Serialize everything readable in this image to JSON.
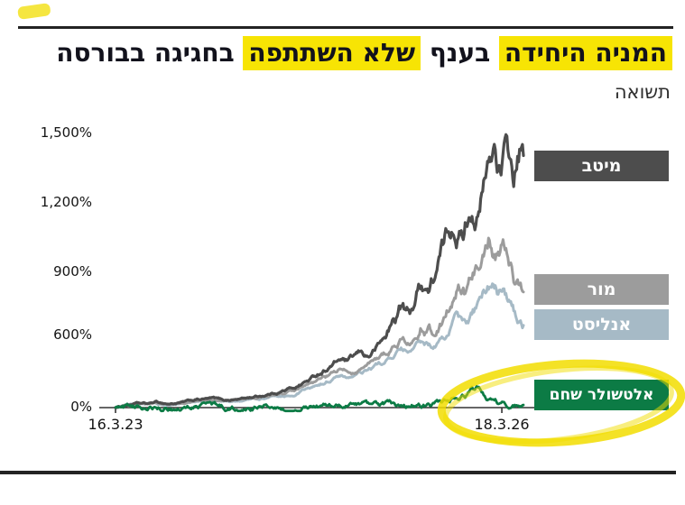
{
  "page": {
    "title_segments": [
      {
        "text": "המניה היחידה",
        "highlight": true
      },
      {
        "text": "בענף",
        "highlight": false
      },
      {
        "text": "שלא השתתפה",
        "highlight": true
      },
      {
        "text": "בחגיגה בבורסה",
        "highlight": false
      }
    ],
    "subtitle": "תשואה"
  },
  "chart_data": {
    "type": "line",
    "title": "המניה היחידה בענף שלא השתתפה בחגיגה בבורסה",
    "ylabel": "תשואה",
    "legend_position": "right",
    "grid": false,
    "y_axis_note": "nonlinear scale, compressed below 600%",
    "y_ticks": [
      {
        "label": "0%",
        "value": 0
      },
      {
        "label": "600%",
        "value": 600
      },
      {
        "label": "900%",
        "value": 900
      },
      {
        "label": "1,200%",
        "value": 1200
      },
      {
        "label": "1,500%",
        "value": 1500
      }
    ],
    "x_ticks": [
      {
        "label": "16.3.23",
        "t": 0
      },
      {
        "label": "18.3.26",
        "t": 0.947
      }
    ],
    "series": [
      {
        "id": "meitav",
        "name": "מיטב",
        "color": "#4d4d4d",
        "width": 3.2,
        "noise_abs": 6,
        "noise_rel": 0.045,
        "anchors": [
          [
            0,
            0
          ],
          [
            0.02,
            15
          ],
          [
            0.05,
            35
          ],
          [
            0.08,
            30
          ],
          [
            0.1,
            45
          ],
          [
            0.13,
            30
          ],
          [
            0.16,
            40
          ],
          [
            0.2,
            65
          ],
          [
            0.24,
            75
          ],
          [
            0.27,
            60
          ],
          [
            0.3,
            70
          ],
          [
            0.33,
            85
          ],
          [
            0.36,
            100
          ],
          [
            0.4,
            130
          ],
          [
            0.44,
            170
          ],
          [
            0.48,
            240
          ],
          [
            0.52,
            330
          ],
          [
            0.55,
            400
          ],
          [
            0.57,
            380
          ],
          [
            0.6,
            450
          ],
          [
            0.62,
            420
          ],
          [
            0.64,
            500
          ],
          [
            0.67,
            620
          ],
          [
            0.7,
            740
          ],
          [
            0.72,
            690
          ],
          [
            0.75,
            860
          ],
          [
            0.77,
            820
          ],
          [
            0.8,
            980
          ],
          [
            0.83,
            1120
          ],
          [
            0.85,
            1060
          ],
          [
            0.87,
            1200
          ],
          [
            0.89,
            1150
          ],
          [
            0.91,
            1320
          ],
          [
            0.93,
            1440
          ],
          [
            0.945,
            1330
          ],
          [
            0.96,
            1430
          ],
          [
            0.975,
            1280
          ],
          [
            0.99,
            1400
          ],
          [
            1,
            1370
          ]
        ]
      },
      {
        "id": "mor",
        "name": "מור",
        "color": "#9c9c9c",
        "width": 3,
        "noise_abs": 6,
        "noise_rel": 0.04,
        "anchors": [
          [
            0,
            0
          ],
          [
            0.03,
            20
          ],
          [
            0.06,
            30
          ],
          [
            0.1,
            35
          ],
          [
            0.13,
            22
          ],
          [
            0.16,
            32
          ],
          [
            0.2,
            52
          ],
          [
            0.24,
            62
          ],
          [
            0.28,
            55
          ],
          [
            0.32,
            68
          ],
          [
            0.36,
            82
          ],
          [
            0.4,
            105
          ],
          [
            0.44,
            135
          ],
          [
            0.48,
            185
          ],
          [
            0.52,
            255
          ],
          [
            0.55,
            310
          ],
          [
            0.58,
            290
          ],
          [
            0.61,
            340
          ],
          [
            0.64,
            395
          ],
          [
            0.67,
            470
          ],
          [
            0.7,
            560
          ],
          [
            0.72,
            530
          ],
          [
            0.75,
            640
          ],
          [
            0.78,
            610
          ],
          [
            0.81,
            720
          ],
          [
            0.84,
            810
          ],
          [
            0.86,
            770
          ],
          [
            0.88,
            880
          ],
          [
            0.9,
            1010
          ],
          [
            0.915,
            1080
          ],
          [
            0.93,
            990
          ],
          [
            0.95,
            1040
          ],
          [
            0.965,
            930
          ],
          [
            0.98,
            850
          ],
          [
            1,
            800
          ]
        ]
      },
      {
        "id": "analyst",
        "name": "אנליסט",
        "color": "#a6bac6",
        "width": 3,
        "noise_abs": 6,
        "noise_rel": 0.038,
        "anchors": [
          [
            0,
            0
          ],
          [
            0.03,
            15
          ],
          [
            0.06,
            25
          ],
          [
            0.1,
            30
          ],
          [
            0.13,
            18
          ],
          [
            0.16,
            28
          ],
          [
            0.2,
            45
          ],
          [
            0.24,
            55
          ],
          [
            0.28,
            48
          ],
          [
            0.32,
            60
          ],
          [
            0.36,
            72
          ],
          [
            0.4,
            92
          ],
          [
            0.44,
            118
          ],
          [
            0.48,
            160
          ],
          [
            0.52,
            215
          ],
          [
            0.55,
            265
          ],
          [
            0.58,
            250
          ],
          [
            0.61,
            295
          ],
          [
            0.64,
            340
          ],
          [
            0.67,
            400
          ],
          [
            0.7,
            470
          ],
          [
            0.72,
            445
          ],
          [
            0.75,
            530
          ],
          [
            0.78,
            505
          ],
          [
            0.81,
            590
          ],
          [
            0.84,
            655
          ],
          [
            0.86,
            625
          ],
          [
            0.88,
            700
          ],
          [
            0.9,
            770
          ],
          [
            0.92,
            840
          ],
          [
            0.935,
            805
          ],
          [
            0.95,
            850
          ],
          [
            0.965,
            760
          ],
          [
            0.98,
            700
          ],
          [
            1,
            655
          ]
        ]
      },
      {
        "id": "altshuler",
        "name": "אלטשולר שחם",
        "color": "#0c7b45",
        "width": 2.8,
        "noise_abs": 22,
        "noise_rel": 0.05,
        "anchors": [
          [
            0,
            0
          ],
          [
            0.04,
            8
          ],
          [
            0.08,
            -5
          ],
          [
            0.12,
            -18
          ],
          [
            0.16,
            -10
          ],
          [
            0.2,
            12
          ],
          [
            0.24,
            18
          ],
          [
            0.28,
            -8
          ],
          [
            0.32,
            -15
          ],
          [
            0.36,
            5
          ],
          [
            0.4,
            12
          ],
          [
            0.44,
            -5
          ],
          [
            0.48,
            8
          ],
          [
            0.52,
            15
          ],
          [
            0.56,
            5
          ],
          [
            0.6,
            18
          ],
          [
            0.64,
            12
          ],
          [
            0.68,
            22
          ],
          [
            0.72,
            18
          ],
          [
            0.76,
            30
          ],
          [
            0.8,
            40
          ],
          [
            0.84,
            80
          ],
          [
            0.87,
            130
          ],
          [
            0.885,
            150
          ],
          [
            0.9,
            95
          ],
          [
            0.92,
            55
          ],
          [
            0.94,
            35
          ],
          [
            0.97,
            25
          ],
          [
            1,
            28
          ]
        ]
      }
    ]
  },
  "annotations": {
    "highlighter_color": "#f2dd00",
    "circle_target": "אלטשולר שחם + 18.3.26"
  }
}
